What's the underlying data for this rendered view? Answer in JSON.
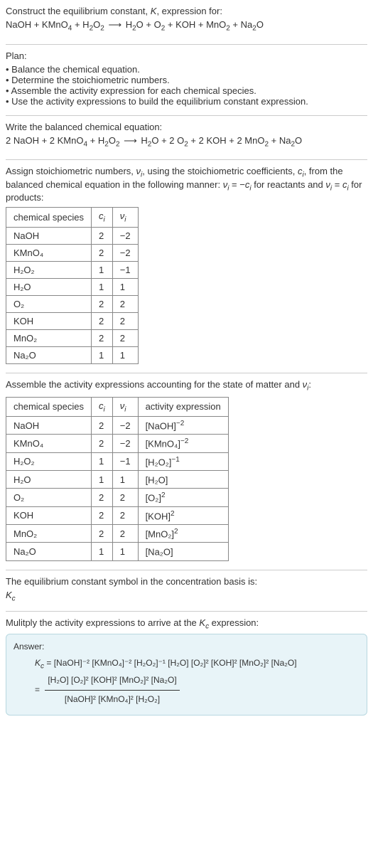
{
  "intro": {
    "line1": "Construct the equilibrium constant, ",
    "Ksym": "K",
    "line1b": ", expression for:",
    "eq_lhs": "NaOH + KMnO",
    "eq_lhs2": " + H",
    "eq_lhs3": "O",
    "eq_rhs1": "H",
    "eq_rhs2": "O + O",
    "eq_rhs3": " + KOH + MnO",
    "eq_rhs4": " + Na",
    "eq_rhs5": "O",
    "arrow": "⟶"
  },
  "plan": {
    "heading": "Plan:",
    "items": [
      "Balance the chemical equation.",
      "Determine the stoichiometric numbers.",
      "Assemble the activity expression for each chemical species.",
      "Use the activity expressions to build the equilibrium constant expression."
    ]
  },
  "balanced": {
    "heading": "Write the balanced chemical equation:",
    "lhs1": "2 NaOH + 2 KMnO",
    "lhs2": " + H",
    "lhs3": "O",
    "rhs1": "H",
    "rhs2": "O + 2 O",
    "rhs3": " + 2 KOH + 2 MnO",
    "rhs4": " + Na",
    "rhs5": "O",
    "arrow": "⟶"
  },
  "stoich": {
    "text1": "Assign stoichiometric numbers, ",
    "nu": "ν",
    "isub": "i",
    "text2": ", using the stoichiometric coefficients, ",
    "c": "c",
    "text3": ", from the balanced chemical equation in the following manner: ",
    "text4": " = −",
    "text5": " for reactants and ",
    "text6": " = ",
    "text7": " for products:",
    "headers": [
      "chemical species",
      "cᵢ",
      "νᵢ"
    ],
    "rows": [
      {
        "species": "NaOH",
        "c": "2",
        "nu": "−2"
      },
      {
        "species": "KMnO₄",
        "c": "2",
        "nu": "−2"
      },
      {
        "species": "H₂O₂",
        "c": "1",
        "nu": "−1"
      },
      {
        "species": "H₂O",
        "c": "1",
        "nu": "1"
      },
      {
        "species": "O₂",
        "c": "2",
        "nu": "2"
      },
      {
        "species": "KOH",
        "c": "2",
        "nu": "2"
      },
      {
        "species": "MnO₂",
        "c": "2",
        "nu": "2"
      },
      {
        "species": "Na₂O",
        "c": "1",
        "nu": "1"
      }
    ]
  },
  "activity": {
    "heading1": "Assemble the activity expressions accounting for the state of matter and ",
    "heading2": ":",
    "headers": [
      "chemical species",
      "cᵢ",
      "νᵢ",
      "activity expression"
    ],
    "rows": [
      {
        "species": "NaOH",
        "c": "2",
        "nu": "−2",
        "expr": "[NaOH]",
        "exp": "−2"
      },
      {
        "species": "KMnO₄",
        "c": "2",
        "nu": "−2",
        "expr": "[KMnO₄]",
        "exp": "−2"
      },
      {
        "species": "H₂O₂",
        "c": "1",
        "nu": "−1",
        "expr": "[H₂O₂]",
        "exp": "−1"
      },
      {
        "species": "H₂O",
        "c": "1",
        "nu": "1",
        "expr": "[H₂O]",
        "exp": ""
      },
      {
        "species": "O₂",
        "c": "2",
        "nu": "2",
        "expr": "[O₂]",
        "exp": "2"
      },
      {
        "species": "KOH",
        "c": "2",
        "nu": "2",
        "expr": "[KOH]",
        "exp": "2"
      },
      {
        "species": "MnO₂",
        "c": "2",
        "nu": "2",
        "expr": "[MnO₂]",
        "exp": "2"
      },
      {
        "species": "Na₂O",
        "c": "1",
        "nu": "1",
        "expr": "[Na₂O]",
        "exp": ""
      }
    ]
  },
  "symbol": {
    "heading": "The equilibrium constant symbol in the concentration basis is:",
    "Kc": "K",
    "csub": "c"
  },
  "multiply": {
    "heading1": "Mulitply the activity expressions to arrive at the ",
    "heading2": " expression:"
  },
  "answer": {
    "label": "Answer:",
    "Kc": "K",
    "csub": "c",
    "eq": " = ",
    "line1": "[NaOH]⁻² [KMnO₄]⁻² [H₂O₂]⁻¹ [H₂O] [O₂]² [KOH]² [MnO₂]² [Na₂O]",
    "num": "[H₂O] [O₂]² [KOH]² [MnO₂]² [Na₂O]",
    "den": "[NaOH]² [KMnO₄]² [H₂O₂]"
  }
}
